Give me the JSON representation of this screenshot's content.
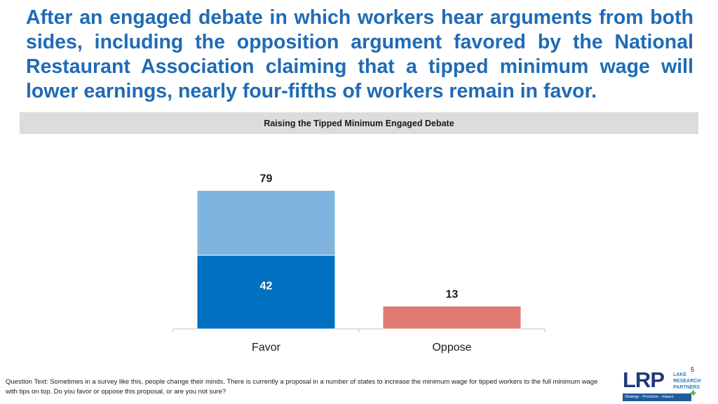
{
  "headline": "After an engaged debate in which workers hear arguments from both sides, including the opposition argument favored by the National Restaurant Association claiming that a tipped minimum wage will lower earnings, nearly four-fifths of workers remain in favor.",
  "chart_data": {
    "type": "bar",
    "title": "Raising the Tipped Minimum Engaged Debate",
    "categories": [
      "Favor",
      "Oppose"
    ],
    "series": [
      {
        "values": [
          42,
          0
        ],
        "color": "#0070c0"
      },
      {
        "values": [
          37,
          13
        ],
        "color": "#7fb4df"
      }
    ],
    "segment_colors": [
      [
        "#0070c0",
        "#7fb4df"
      ],
      [
        "#c0392b",
        "#e07b74"
      ]
    ],
    "total_labels": [
      "79",
      "13"
    ],
    "inner_labels": [
      "42",
      ""
    ],
    "ylim": [
      0,
      84
    ]
  },
  "footnote": "Question Text: Sometimes in a survey like this, people change their minds. There is currently a proposal in a number of states to increase the minimum wage for tipped workers to the full minimum wage with tips on top. Do you favor or oppose this proposal, or are you not sure?",
  "page_number": "5",
  "logo": {
    "letters": "LRP",
    "line1": "LAKE",
    "line2": "RESEARCH",
    "line3": "PARTNERS",
    "tagline": "Strategy · Precision · Impact",
    "mark_icon": "puzzle-icon"
  }
}
